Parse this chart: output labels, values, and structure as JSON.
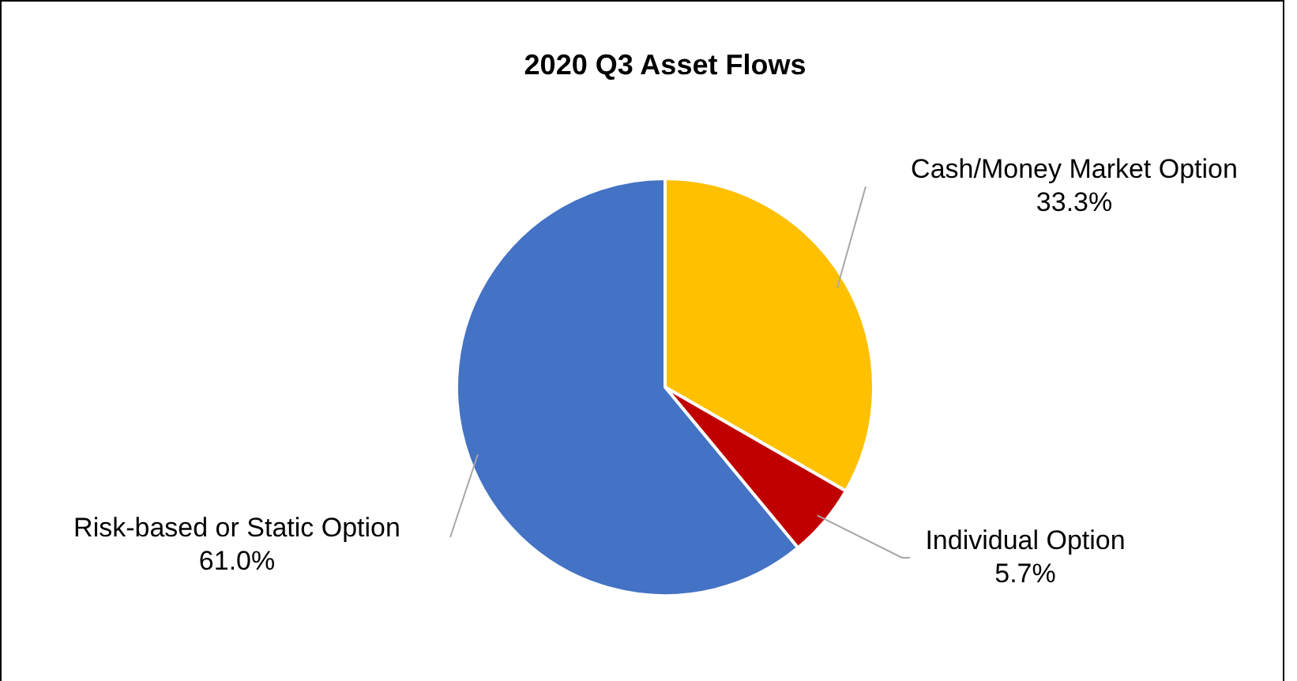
{
  "chart_data": {
    "type": "pie",
    "title": "2020 Q3 Asset Flows",
    "categories": [
      "Cash/Money Market Option",
      "Individual Option",
      "Risk-based or Static Option"
    ],
    "values": [
      33.3,
      5.7,
      61.0
    ],
    "colors": [
      "#ffc000",
      "#c00000",
      "#4472c4"
    ],
    "value_labels": [
      "33.3%",
      "5.7%",
      "61.0%"
    ],
    "legend": false
  }
}
